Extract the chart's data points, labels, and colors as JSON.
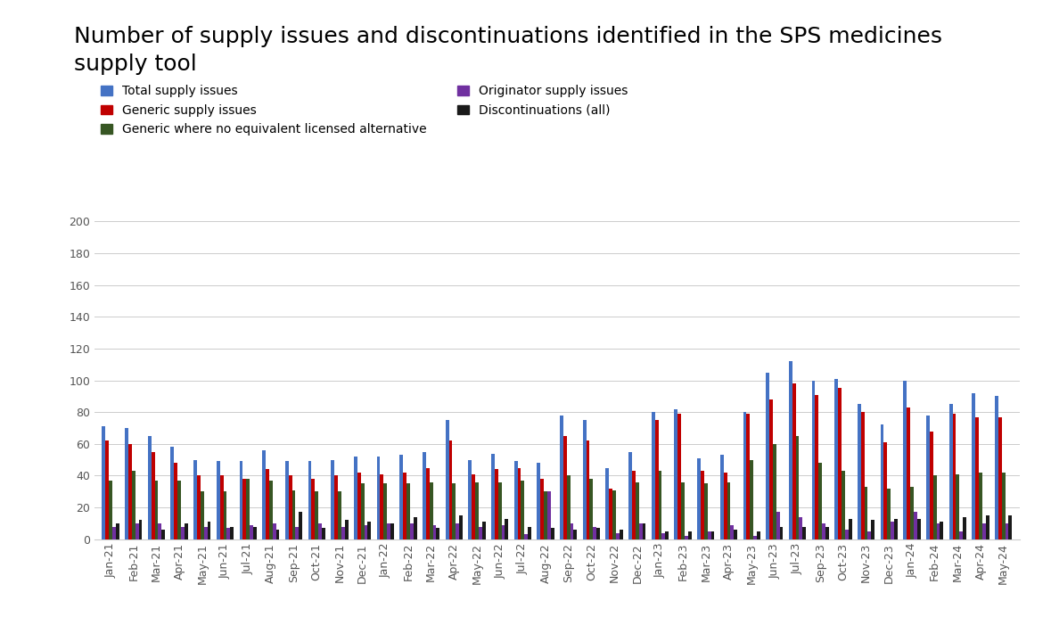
{
  "title": "Number of supply issues and discontinuations identified in the SPS medicines\nsupply tool",
  "title_fontsize": 18,
  "background_color": "#ffffff",
  "categories": [
    "Jan-21",
    "Feb-21",
    "Mar-21",
    "Apr-21",
    "May-21",
    "Jun-21",
    "Jul-21",
    "Aug-21",
    "Sep-21",
    "Oct-21",
    "Nov-21",
    "Dec-21",
    "Jan-22",
    "Feb-22",
    "Mar-22",
    "Apr-22",
    "May-22",
    "Jun-22",
    "Jul-22",
    "Aug-22",
    "Sep-22",
    "Oct-22",
    "Nov-22",
    "Dec-22",
    "Jan-23",
    "Feb-23",
    "Mar-23",
    "Apr-23",
    "May-23",
    "Jun-23",
    "Jul-23",
    "Sep-23",
    "Oct-23",
    "Nov-23",
    "Dec-23",
    "Jan-24",
    "Feb-24",
    "Mar-24",
    "Apr-24",
    "May-24"
  ],
  "series": [
    {
      "name": "Total supply issues",
      "color": "#4472C4",
      "values": [
        71,
        70,
        65,
        58,
        50,
        49,
        49,
        56,
        49,
        49,
        50,
        52,
        52,
        53,
        55,
        75,
        50,
        54,
        49,
        48,
        78,
        75,
        45,
        55,
        80,
        82,
        51,
        53,
        80,
        105,
        112,
        100,
        101,
        85,
        72,
        100,
        78,
        85,
        92,
        90
      ]
    },
    {
      "name": "Generic supply issues",
      "color": "#C00000",
      "values": [
        62,
        60,
        55,
        48,
        40,
        40,
        38,
        44,
        40,
        38,
        40,
        42,
        41,
        42,
        45,
        62,
        41,
        44,
        45,
        38,
        65,
        62,
        32,
        43,
        75,
        79,
        43,
        42,
        79,
        88,
        98,
        91,
        95,
        80,
        61,
        83,
        68,
        79,
        77,
        77
      ]
    },
    {
      "name": "Generic where no equivalent licensed alternative",
      "color": "#375623",
      "values": [
        37,
        43,
        37,
        37,
        30,
        30,
        38,
        37,
        31,
        30,
        30,
        35,
        35,
        35,
        36,
        35,
        36,
        36,
        37,
        30,
        40,
        38,
        31,
        36,
        43,
        36,
        35,
        36,
        50,
        60,
        65,
        48,
        43,
        33,
        32,
        33,
        40,
        41,
        42,
        42
      ]
    },
    {
      "name": "Originator supply issues",
      "color": "#7030A0",
      "values": [
        8,
        10,
        10,
        8,
        8,
        7,
        9,
        10,
        8,
        10,
        8,
        9,
        10,
        10,
        9,
        10,
        8,
        9,
        3,
        30,
        10,
        8,
        4,
        10,
        4,
        2,
        5,
        9,
        2,
        17,
        14,
        10,
        6,
        5,
        11,
        17,
        10,
        5,
        10,
        10
      ]
    },
    {
      "name": "Discontinuations (all)",
      "color": "#1a1a1a",
      "values": [
        10,
        12,
        6,
        10,
        11,
        8,
        8,
        6,
        17,
        7,
        12,
        11,
        10,
        14,
        7,
        15,
        11,
        13,
        8,
        7,
        6,
        7,
        6,
        10,
        5,
        5,
        5,
        6,
        5,
        8,
        8,
        8,
        13,
        12,
        13,
        13,
        11,
        14,
        15,
        15
      ]
    }
  ],
  "ylim": [
    0,
    210
  ],
  "yticks": [
    0,
    20,
    40,
    60,
    80,
    100,
    120,
    140,
    160,
    180,
    200
  ],
  "bar_width": 0.15,
  "grid_color": "#cccccc",
  "legend_fontsize": 10,
  "tick_fontsize": 9
}
